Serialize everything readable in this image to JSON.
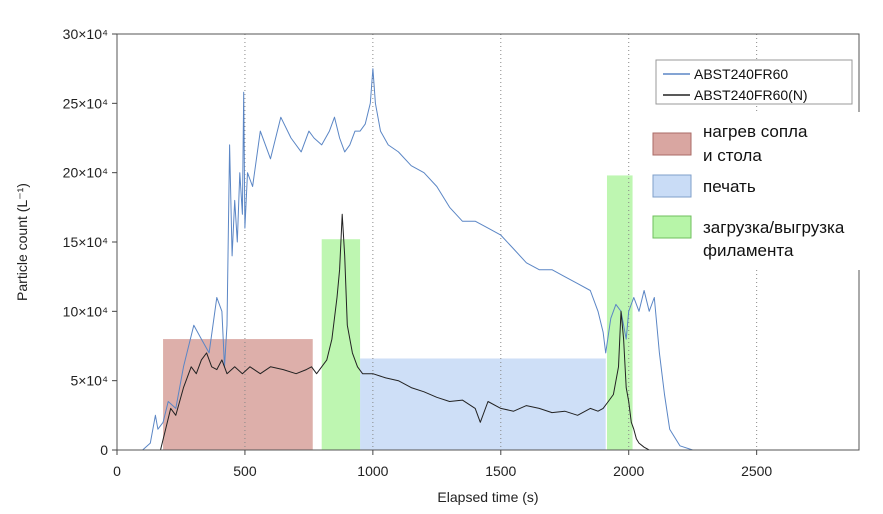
{
  "chart_data": {
    "type": "line",
    "xlabel": "Elapsed time (s)",
    "ylabel": "Particle count (L⁻¹)",
    "xlim": [
      0,
      2900
    ],
    "ylim": [
      0,
      300000
    ],
    "x_ticks": [
      0,
      500,
      1000,
      1500,
      2000,
      2500
    ],
    "x_tick_labels": [
      "0",
      "500",
      "1000",
      "1500",
      "2000",
      "2500"
    ],
    "y_ticks": [
      0,
      50000,
      100000,
      150000,
      200000,
      250000,
      300000
    ],
    "y_tick_labels": [
      "0",
      "5×10⁴",
      "10×10⁴",
      "15×10⁴",
      "20×10⁴",
      "25×10⁴",
      "30×10⁴"
    ],
    "grid": "vertical dotted",
    "legend_position": "top-right",
    "series": [
      {
        "name": "ABST240FR60",
        "color": "#5b86c5",
        "x": [
          0,
          100,
          130,
          150,
          160,
          180,
          200,
          230,
          260,
          300,
          330,
          360,
          390,
          410,
          420,
          430,
          440,
          450,
          460,
          470,
          480,
          490,
          495,
          500,
          510,
          530,
          560,
          600,
          640,
          680,
          720,
          750,
          770,
          800,
          830,
          850,
          870,
          890,
          910,
          930,
          950,
          970,
          990,
          1000,
          1010,
          1030,
          1060,
          1100,
          1150,
          1200,
          1250,
          1300,
          1350,
          1400,
          1450,
          1500,
          1550,
          1600,
          1650,
          1700,
          1750,
          1800,
          1850,
          1880,
          1900,
          1910,
          1930,
          1950,
          1970,
          1990,
          2000,
          2020,
          2040,
          2060,
          2080,
          2100,
          2120,
          2140,
          2160,
          2200,
          2250,
          2300,
          2900
        ],
        "y": [
          0,
          0,
          5000,
          25000,
          15000,
          20000,
          35000,
          30000,
          60000,
          90000,
          80000,
          70000,
          110000,
          100000,
          60000,
          90000,
          220000,
          140000,
          180000,
          150000,
          200000,
          170000,
          258000,
          160000,
          200000,
          190000,
          230000,
          210000,
          240000,
          225000,
          215000,
          230000,
          225000,
          220000,
          230000,
          240000,
          225000,
          215000,
          220000,
          230000,
          230000,
          235000,
          250000,
          275000,
          250000,
          230000,
          220000,
          215000,
          205000,
          200000,
          190000,
          175000,
          165000,
          165000,
          160000,
          155000,
          145000,
          135000,
          130000,
          130000,
          125000,
          120000,
          115000,
          100000,
          85000,
          70000,
          95000,
          105000,
          100000,
          80000,
          100000,
          110000,
          100000,
          115000,
          100000,
          110000,
          70000,
          40000,
          15000,
          3000,
          0,
          0,
          0
        ]
      },
      {
        "name": "ABST240FR60(N)",
        "color": "#222222",
        "x": [
          0,
          100,
          170,
          190,
          210,
          230,
          260,
          290,
          310,
          330,
          350,
          370,
          390,
          410,
          430,
          460,
          490,
          520,
          560,
          600,
          650,
          700,
          740,
          760,
          780,
          800,
          820,
          840,
          860,
          870,
          880,
          890,
          900,
          920,
          940,
          960,
          1000,
          1050,
          1100,
          1150,
          1200,
          1250,
          1300,
          1350,
          1400,
          1420,
          1450,
          1500,
          1550,
          1600,
          1650,
          1700,
          1750,
          1800,
          1850,
          1880,
          1900,
          1920,
          1940,
          1960,
          1970,
          1980,
          1990,
          2000,
          2010,
          2020,
          2030,
          2040,
          2060,
          2080,
          2100,
          2900
        ],
        "y": [
          0,
          0,
          0,
          15000,
          30000,
          25000,
          45000,
          60000,
          55000,
          65000,
          70000,
          60000,
          58000,
          65000,
          55000,
          60000,
          55000,
          60000,
          55000,
          60000,
          58000,
          55000,
          58000,
          60000,
          55000,
          60000,
          65000,
          80000,
          110000,
          130000,
          170000,
          140000,
          90000,
          70000,
          60000,
          55000,
          55000,
          52000,
          50000,
          45000,
          42000,
          38000,
          35000,
          36000,
          30000,
          20000,
          35000,
          30000,
          28000,
          32000,
          30000,
          27000,
          28000,
          25000,
          30000,
          28000,
          30000,
          35000,
          40000,
          60000,
          100000,
          80000,
          45000,
          35000,
          20000,
          15000,
          8000,
          5000,
          2000,
          0,
          0,
          0
        ]
      }
    ],
    "shaded_regions": [
      {
        "label": "нагрев сопла\nи стола",
        "color": "#d9a6a1",
        "x0": 180,
        "x1": 765,
        "y0": 0,
        "y1": 80000
      },
      {
        "label": "печать",
        "color": "#c9dcf6",
        "x0": 950,
        "x1": 1910,
        "y0": 0,
        "y1": 66000
      },
      {
        "label": "загрузка/выгрузка\nфиламента",
        "color": "#b7f5a8",
        "x0": 800,
        "x1": 950,
        "y0": 0,
        "y1": 152000
      },
      {
        "label": "загрузка/выгрузка\nфиламента",
        "color": "#b7f5a8",
        "x0": 1915,
        "x1": 2015,
        "y0": 0,
        "y1": 198000
      }
    ],
    "annotation_legend": [
      {
        "label": "нагрев сопла",
        "label2": "и стола",
        "color": "#d9a6a1"
      },
      {
        "label": "печать",
        "label2": "",
        "color": "#c9dcf6"
      },
      {
        "label": "загрузка/выгрузка",
        "label2": "филамента",
        "color": "#b7f5a8"
      }
    ]
  }
}
